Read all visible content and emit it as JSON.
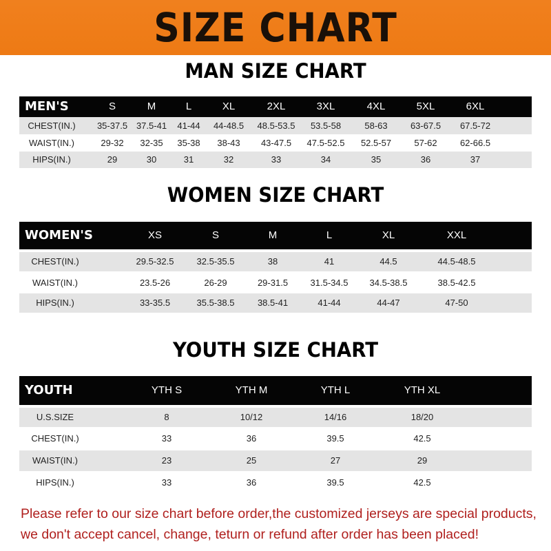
{
  "title": "SIZE CHART",
  "colors": {
    "banner": "#f0801e",
    "header_row": "#050505",
    "stripe": "#e4e4e4",
    "note": "#b0201e"
  },
  "men": {
    "title": "MAN SIZE CHART",
    "label": "MEN'S",
    "sizes": [
      "S",
      "M",
      "L",
      "XL",
      "2XL",
      "3XL",
      "4XL",
      "5XL",
      "6XL"
    ],
    "rows": [
      {
        "label": "CHEST(IN.)",
        "values": [
          "35-37.5",
          "37.5-41",
          "41-44",
          "44-48.5",
          "48.5-53.5",
          "53.5-58",
          "58-63",
          "63-67.5",
          "67.5-72"
        ]
      },
      {
        "label": "WAIST(IN.)",
        "values": [
          "29-32",
          "32-35",
          "35-38",
          "38-43",
          "43-47.5",
          "47.5-52.5",
          "52.5-57",
          "57-62",
          "62-66.5"
        ]
      },
      {
        "label": "HIPS(IN.)",
        "values": [
          "29",
          "30",
          "31",
          "32",
          "33",
          "34",
          "35",
          "36",
          "37"
        ]
      }
    ]
  },
  "women": {
    "title": "WOMEN SIZE CHART",
    "label": "WOMEN'S",
    "sizes": [
      "XS",
      "S",
      "M",
      "L",
      "XL",
      "XXL"
    ],
    "rows": [
      {
        "label": "CHEST(IN.)",
        "values": [
          "29.5-32.5",
          "32.5-35.5",
          "38",
          "41",
          "44.5",
          "44.5-48.5"
        ]
      },
      {
        "label": "WAIST(IN.)",
        "values": [
          "23.5-26",
          "26-29",
          "29-31.5",
          "31.5-34.5",
          "34.5-38.5",
          "38.5-42.5"
        ]
      },
      {
        "label": "HIPS(IN.)",
        "values": [
          "33-35.5",
          "35.5-38.5",
          "38.5-41",
          "41-44",
          "44-47",
          "47-50"
        ]
      }
    ]
  },
  "youth": {
    "title": "YOUTH SIZE CHART",
    "label": "YOUTH",
    "sizes": [
      "YTH S",
      "YTH M",
      "YTH L",
      "YTH XL"
    ],
    "rows": [
      {
        "label": "U.S.SIZE",
        "values": [
          "8",
          "10/12",
          "14/16",
          "18/20"
        ]
      },
      {
        "label": "CHEST(IN.)",
        "values": [
          "33",
          "36",
          "39.5",
          "42.5"
        ]
      },
      {
        "label": "WAIST(IN.)",
        "values": [
          "23",
          "25",
          "27",
          "29"
        ]
      },
      {
        "label": "HIPS(IN.)",
        "values": [
          "33",
          "36",
          "39.5",
          "42.5"
        ]
      }
    ]
  },
  "notice": {
    "line1": "Please refer to our size chart before order,the customized jerseys are special products,",
    "line2": "we don't accept cancel, change, teturn or refund after order has been placed!"
  }
}
